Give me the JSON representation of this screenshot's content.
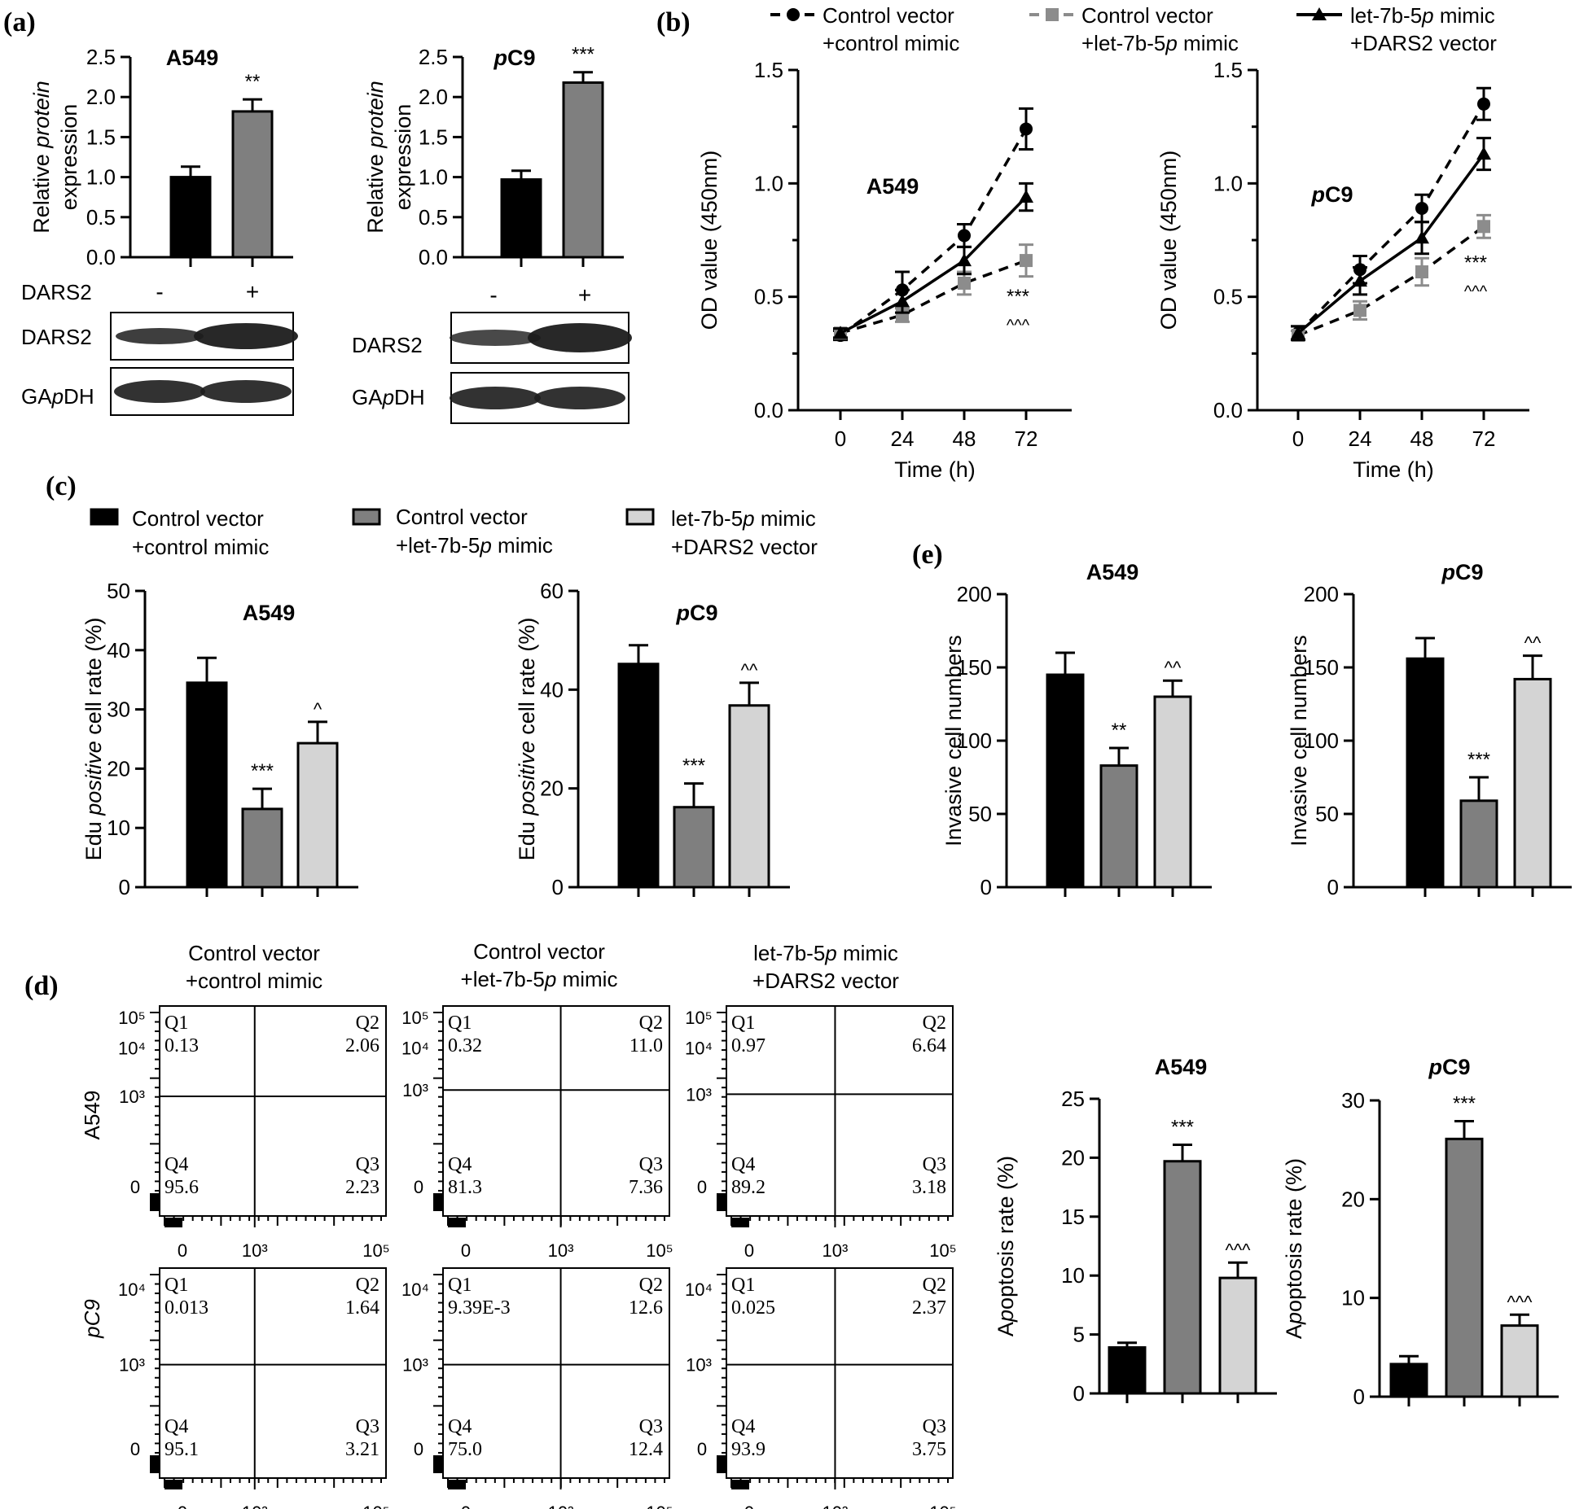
{
  "panel_labels": [
    "(a)",
    "(b)",
    "(c)",
    "(d)",
    "(e)"
  ],
  "colors": {
    "black": "#000000",
    "dark_gray": "#7f7f7f",
    "light_gray": "#d4d4d4",
    "line_gray": "#8c8c8c"
  },
  "legend": {
    "items": [
      {
        "line1": "Control vector",
        "line2": "+control mimic",
        "color": "#000000",
        "marker": "circle"
      },
      {
        "line1": "Control vector",
        "line2": "+let-7b-5p mimic",
        "color": "#8c8c8c",
        "marker": "square"
      },
      {
        "line1": "let-7b-5p mimic",
        "line2": "+DARS2 vector",
        "color": "#000000",
        "marker": "triangle"
      }
    ]
  },
  "western": {
    "dars2_row_label": "DARS2",
    "signs": [
      "-",
      "+"
    ],
    "band_labels": [
      "DARS2",
      "GApDH"
    ]
  },
  "flow": {
    "col_titles": [
      {
        "line1": "Control vector",
        "line2": "+control mimic"
      },
      {
        "line1": "Control vector",
        "line2": "+let-7b-5p mimic"
      },
      {
        "line1": "let-7b-5p mimic",
        "line2": "+DARS2 vector"
      }
    ],
    "row_labels": [
      "A549",
      "pC9"
    ],
    "tick_labels": [
      "0",
      "10³",
      "10⁵",
      "10⁴"
    ],
    "q_names": [
      "Q1",
      "Q2",
      "Q3",
      "Q4"
    ],
    "plots": [
      {
        "q1": "0.13",
        "q2": "2.06",
        "q3": "2.23",
        "q4": "95.6"
      },
      {
        "q1": "0.32",
        "q2": "11.0",
        "q3": "7.36",
        "q4": "81.3"
      },
      {
        "q1": "0.97",
        "q2": "6.64",
        "q3": "3.18",
        "q4": "89.2"
      },
      {
        "q1": "0.013",
        "q2": "1.64",
        "q3": "3.21",
        "q4": "95.1"
      },
      {
        "q1": "9.39E-3",
        "q2": "12.6",
        "q3": "12.4",
        "q4": "75.0"
      },
      {
        "q1": "0.025",
        "q2": "2.37",
        "q3": "3.75",
        "q4": "93.9"
      }
    ]
  },
  "chart_data": [
    {
      "id": "a1",
      "type": "bar",
      "title": "A549",
      "ylabel": "Relative protein expression",
      "ylim": [
        0,
        2.5
      ],
      "ticks": [
        "0.0",
        "0.5",
        "1.0",
        "1.5",
        "2.0",
        "2.5"
      ],
      "categories": [
        "-",
        "+"
      ],
      "values": [
        1.0,
        1.82
      ],
      "errors": [
        0.13,
        0.15
      ],
      "colors": [
        "#000000",
        "#7f7f7f"
      ],
      "sig": [
        "",
        "**"
      ]
    },
    {
      "id": "a2",
      "type": "bar",
      "title": "pC9",
      "ylabel": "Relative protein expression",
      "ylim": [
        0,
        2.5
      ],
      "ticks": [
        "0.0",
        "0.5",
        "1.0",
        "1.5",
        "2.0",
        "2.5"
      ],
      "categories": [
        "-",
        "+"
      ],
      "values": [
        0.97,
        2.18
      ],
      "errors": [
        0.11,
        0.13
      ],
      "colors": [
        "#000000",
        "#7f7f7f"
      ],
      "sig": [
        "",
        "***"
      ]
    },
    {
      "id": "b1",
      "type": "line",
      "title": "A549",
      "xlabel": "Time (h)",
      "ylabel": "OD value (450nm)",
      "x": [
        0,
        24,
        48,
        72
      ],
      "ylim": [
        0,
        1.5
      ],
      "xticks": [
        "0",
        "24",
        "48",
        "72"
      ],
      "yticks": [
        "0.0",
        "0.5",
        "1.0",
        "1.5"
      ],
      "series": [
        {
          "name": "Control vector +control mimic",
          "values": [
            0.33,
            0.53,
            0.77,
            1.24
          ],
          "errors": [
            0.02,
            0.08,
            0.05,
            0.09
          ]
        },
        {
          "name": "Control vector +let-7b-5p mimic",
          "values": [
            0.34,
            0.42,
            0.56,
            0.66
          ],
          "errors": [
            0.02,
            0.03,
            0.05,
            0.07
          ]
        },
        {
          "name": "let-7b-5p mimic +DARS2 vector",
          "values": [
            0.34,
            0.48,
            0.66,
            0.94
          ],
          "errors": [
            0.02,
            0.05,
            0.06,
            0.06
          ]
        }
      ],
      "sig": [
        "***",
        "^^^"
      ]
    },
    {
      "id": "b2",
      "type": "line",
      "title": "pC9",
      "xlabel": "Time (h)",
      "ylabel": "OD value (450nm)",
      "x": [
        0,
        24,
        48,
        72
      ],
      "ylim": [
        0,
        1.5
      ],
      "xticks": [
        "0",
        "24",
        "48",
        "72"
      ],
      "yticks": [
        "0.0",
        "0.5",
        "1.0",
        "1.5"
      ],
      "series": [
        {
          "name": "Control vector +control mimic",
          "values": [
            0.34,
            0.62,
            0.89,
            1.35
          ],
          "errors": [
            0.03,
            0.06,
            0.06,
            0.07
          ]
        },
        {
          "name": "Control vector +let-7b-5p mimic",
          "values": [
            0.33,
            0.44,
            0.61,
            0.81
          ],
          "errors": [
            0.02,
            0.04,
            0.06,
            0.05
          ]
        },
        {
          "name": "let-7b-5p mimic +DARS2 vector",
          "values": [
            0.34,
            0.57,
            0.76,
            1.13
          ],
          "errors": [
            0.03,
            0.06,
            0.07,
            0.07
          ]
        }
      ],
      "sig": [
        "***",
        "^^^"
      ]
    },
    {
      "id": "c1",
      "type": "bar",
      "title": "A549",
      "ylabel": "Edu positive cell rate (%)",
      "ylim": [
        0,
        50
      ],
      "ticks": [
        "0",
        "10",
        "20",
        "30",
        "40",
        "50"
      ],
      "values": [
        34.5,
        13.2,
        24.3
      ],
      "errors": [
        4.2,
        3.4,
        3.6
      ],
      "colors": [
        "#000000",
        "#7f7f7f",
        "#d4d4d4"
      ],
      "sig": [
        "",
        "***",
        "^"
      ]
    },
    {
      "id": "c2",
      "type": "bar",
      "title": "pC9",
      "ylabel": "Edu positive cell rate (%)",
      "ylim": [
        0,
        60
      ],
      "ticks": [
        "0",
        "20",
        "40",
        "60"
      ],
      "values": [
        45.2,
        16.2,
        36.8
      ],
      "errors": [
        3.8,
        4.8,
        4.6
      ],
      "colors": [
        "#000000",
        "#7f7f7f",
        "#d4d4d4"
      ],
      "sig": [
        "",
        "***",
        "^^"
      ]
    },
    {
      "id": "e1",
      "type": "bar",
      "title": "A549",
      "ylabel": "Invasive cell numbers",
      "ylim": [
        0,
        200
      ],
      "ticks": [
        "0",
        "50",
        "100",
        "150",
        "200"
      ],
      "values": [
        145,
        83,
        130
      ],
      "errors": [
        15,
        12,
        11
      ],
      "colors": [
        "#000000",
        "#7f7f7f",
        "#d4d4d4"
      ],
      "sig": [
        "",
        "**",
        "^^"
      ]
    },
    {
      "id": "e2",
      "type": "bar",
      "title": "pC9",
      "ylabel": "Invasive cell numbers",
      "ylim": [
        0,
        200
      ],
      "ticks": [
        "0",
        "50",
        "100",
        "150",
        "200"
      ],
      "values": [
        156,
        59,
        142
      ],
      "errors": [
        14,
        16,
        16
      ],
      "colors": [
        "#000000",
        "#7f7f7f",
        "#d4d4d4"
      ],
      "sig": [
        "",
        "***",
        "^^"
      ]
    },
    {
      "id": "d1",
      "type": "bar",
      "title": "A549",
      "ylabel": "Apoptosis rate (%)",
      "ylim": [
        0,
        25
      ],
      "ticks": [
        "0",
        "5",
        "10",
        "15",
        "20",
        "25"
      ],
      "values": [
        3.9,
        19.7,
        9.8
      ],
      "errors": [
        0.4,
        1.4,
        1.3
      ],
      "colors": [
        "#000000",
        "#7f7f7f",
        "#d4d4d4"
      ],
      "sig": [
        "",
        "***",
        "^^^"
      ]
    },
    {
      "id": "d2",
      "type": "bar",
      "title": "pC9",
      "ylabel": "Apoptosis rate (%)",
      "ylim": [
        0,
        30
      ],
      "ticks": [
        "0",
        "10",
        "20",
        "30"
      ],
      "values": [
        3.3,
        26.1,
        7.2
      ],
      "errors": [
        0.8,
        1.8,
        1.1
      ],
      "colors": [
        "#000000",
        "#7f7f7f",
        "#d4d4d4"
      ],
      "sig": [
        "",
        "***",
        "^^^"
      ]
    }
  ]
}
